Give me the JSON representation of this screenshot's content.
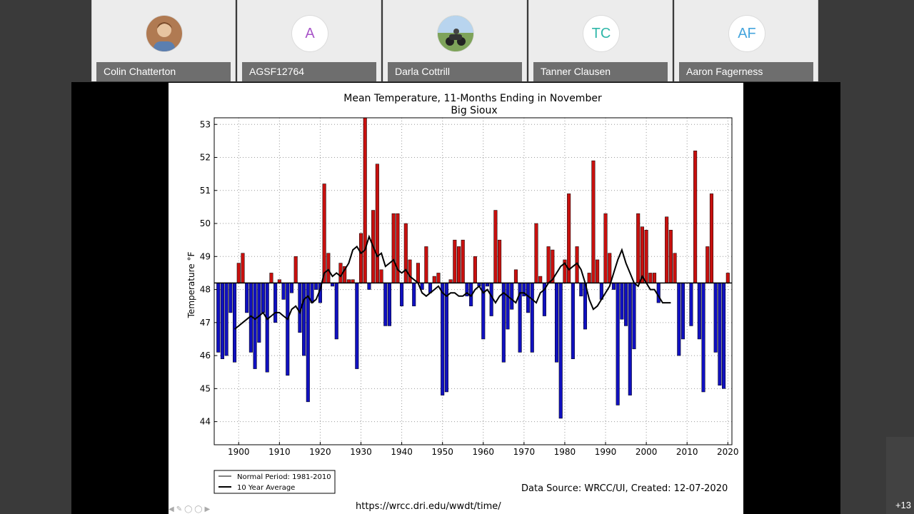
{
  "participants": [
    {
      "name": "Colin Chatterton",
      "initials": "",
      "avatar": "photo-avatar",
      "color": "#b07a52"
    },
    {
      "name": "AGSF12764",
      "initials": "A",
      "avatar": "initial-avatar",
      "color": "#a855c8"
    },
    {
      "name": "Darla Cottrill",
      "initials": "",
      "avatar": "photo-avatar",
      "color": "#6a8f4e"
    },
    {
      "name": "Tanner Clausen",
      "initials": "TC",
      "avatar": "initial-avatar",
      "color": "#2fb7a9"
    },
    {
      "name": "Aaron Fagerness",
      "initials": "AF",
      "avatar": "initial-avatar",
      "color": "#45a5dd"
    }
  ],
  "overflow_label": "+13",
  "slide": {
    "url": "https://wrcc.dri.edu/wwdt/time/",
    "source": "Data Source: WRCC/UI, Created: 12-07-2020",
    "nav_icons": [
      "prev-arrow-icon",
      "pencil-icon",
      "zoom-icon",
      "options-icon",
      "next-arrow-icon"
    ]
  },
  "chart_data": {
    "type": "bar",
    "title": "Mean Temperature, 11-Months Ending in November",
    "subtitle": "Big Sioux",
    "xlabel": "",
    "ylabel": "Temperature °F",
    "baseline": 48.2,
    "xlim": [
      1894,
      2021
    ],
    "ylim": [
      43.3,
      53.2
    ],
    "x_ticks": [
      1900,
      1910,
      1920,
      1930,
      1940,
      1950,
      1960,
      1970,
      1980,
      1990,
      2000,
      2010,
      2020
    ],
    "y_ticks": [
      44,
      45,
      46,
      47,
      48,
      49,
      50,
      51,
      52,
      53
    ],
    "grid": true,
    "legend": [
      "Normal Period: 1981-2010",
      "10 Year Average"
    ],
    "legend_position": "bottom-left",
    "colors": {
      "above": "#c8100e",
      "below": "#1010c0",
      "line": "#000000"
    },
    "years_start": 1895,
    "values": [
      46.1,
      45.9,
      46,
      47.3,
      45.8,
      48.8,
      49.1,
      47.3,
      46.1,
      45.6,
      46.4,
      47.3,
      45.5,
      48.5,
      47,
      48.3,
      47.7,
      45.4,
      47.9,
      49,
      46.7,
      46,
      44.6,
      47.6,
      48,
      47.6,
      51.2,
      49.1,
      48.1,
      46.5,
      48.8,
      48.7,
      48.3,
      48.3,
      45.6,
      49.7,
      53.2,
      48,
      50.4,
      51.8,
      48.6,
      46.9,
      46.9,
      50.3,
      50.3,
      47.5,
      50,
      48.9,
      47.5,
      48.8,
      48,
      49.3,
      47.9,
      48.4,
      48.5,
      44.8,
      44.9,
      48.3,
      49.5,
      49.3,
      49.5,
      47.8,
      47.5,
      49,
      48.1,
      46.5,
      48.1,
      47.2,
      50.4,
      49.5,
      45.8,
      46.8,
      47.4,
      48.6,
      46.1,
      47.8,
      47.3,
      46.1,
      50,
      48.4,
      47.2,
      49.3,
      49.2,
      45.8,
      44.1,
      48.9,
      50.9,
      45.9,
      49.3,
      47.8,
      46.8,
      48.5,
      51.9,
      48.9,
      47.7,
      50.3,
      49.1,
      48,
      44.5,
      47.1,
      46.9,
      44.8,
      46.2,
      50.3,
      49.9,
      49.8,
      48.5,
      48.5,
      47.6,
      48.2,
      50.2,
      49.8,
      49.1,
      46,
      46.5,
      48.2,
      46.9,
      52.2,
      46.5,
      44.9,
      49.3,
      50.9,
      46.1,
      45.1,
      45,
      48.5
    ],
    "ten_year_avg_start": 1899,
    "ten_year_avg": [
      46.8,
      46.9,
      47,
      47.1,
      47.2,
      47.1,
      47.2,
      47.3,
      47.1,
      47.2,
      47.3,
      47.3,
      47.2,
      47.1,
      47.4,
      47.5,
      47.3,
      47.7,
      47.8,
      47.6,
      47.7,
      48,
      48.5,
      48.6,
      48.4,
      48.5,
      48.4,
      48.6,
      48.8,
      49.2,
      49.3,
      49.1,
      49.2,
      49.6,
      49.3,
      49,
      49.1,
      48.7,
      48.8,
      48.9,
      48.6,
      48.5,
      48.6,
      48.4,
      48.3,
      48.2,
      47.9,
      47.8,
      47.9,
      48,
      48.1,
      47.9,
      47.8,
      47.9,
      47.9,
      47.8,
      47.8,
      47.9,
      47.8,
      48,
      48.1,
      47.9,
      48,
      47.8,
      47.6,
      47.8,
      47.9,
      47.8,
      47.7,
      47.6,
      47.9,
      47.9,
      47.8,
      47.7,
      47.6,
      47.9,
      48,
      48.2,
      48.3,
      48.5,
      48.7,
      48.8,
      48.6,
      48.7,
      48.8,
      48.6,
      48.2,
      47.7,
      47.4,
      47.5,
      47.7,
      47.9,
      48.1,
      48.5,
      48.9,
      49.2,
      48.8,
      48.5,
      48.2,
      48.1,
      48.4,
      48.2,
      48,
      48,
      47.8,
      47.6,
      47.6,
      47.6
    ]
  }
}
